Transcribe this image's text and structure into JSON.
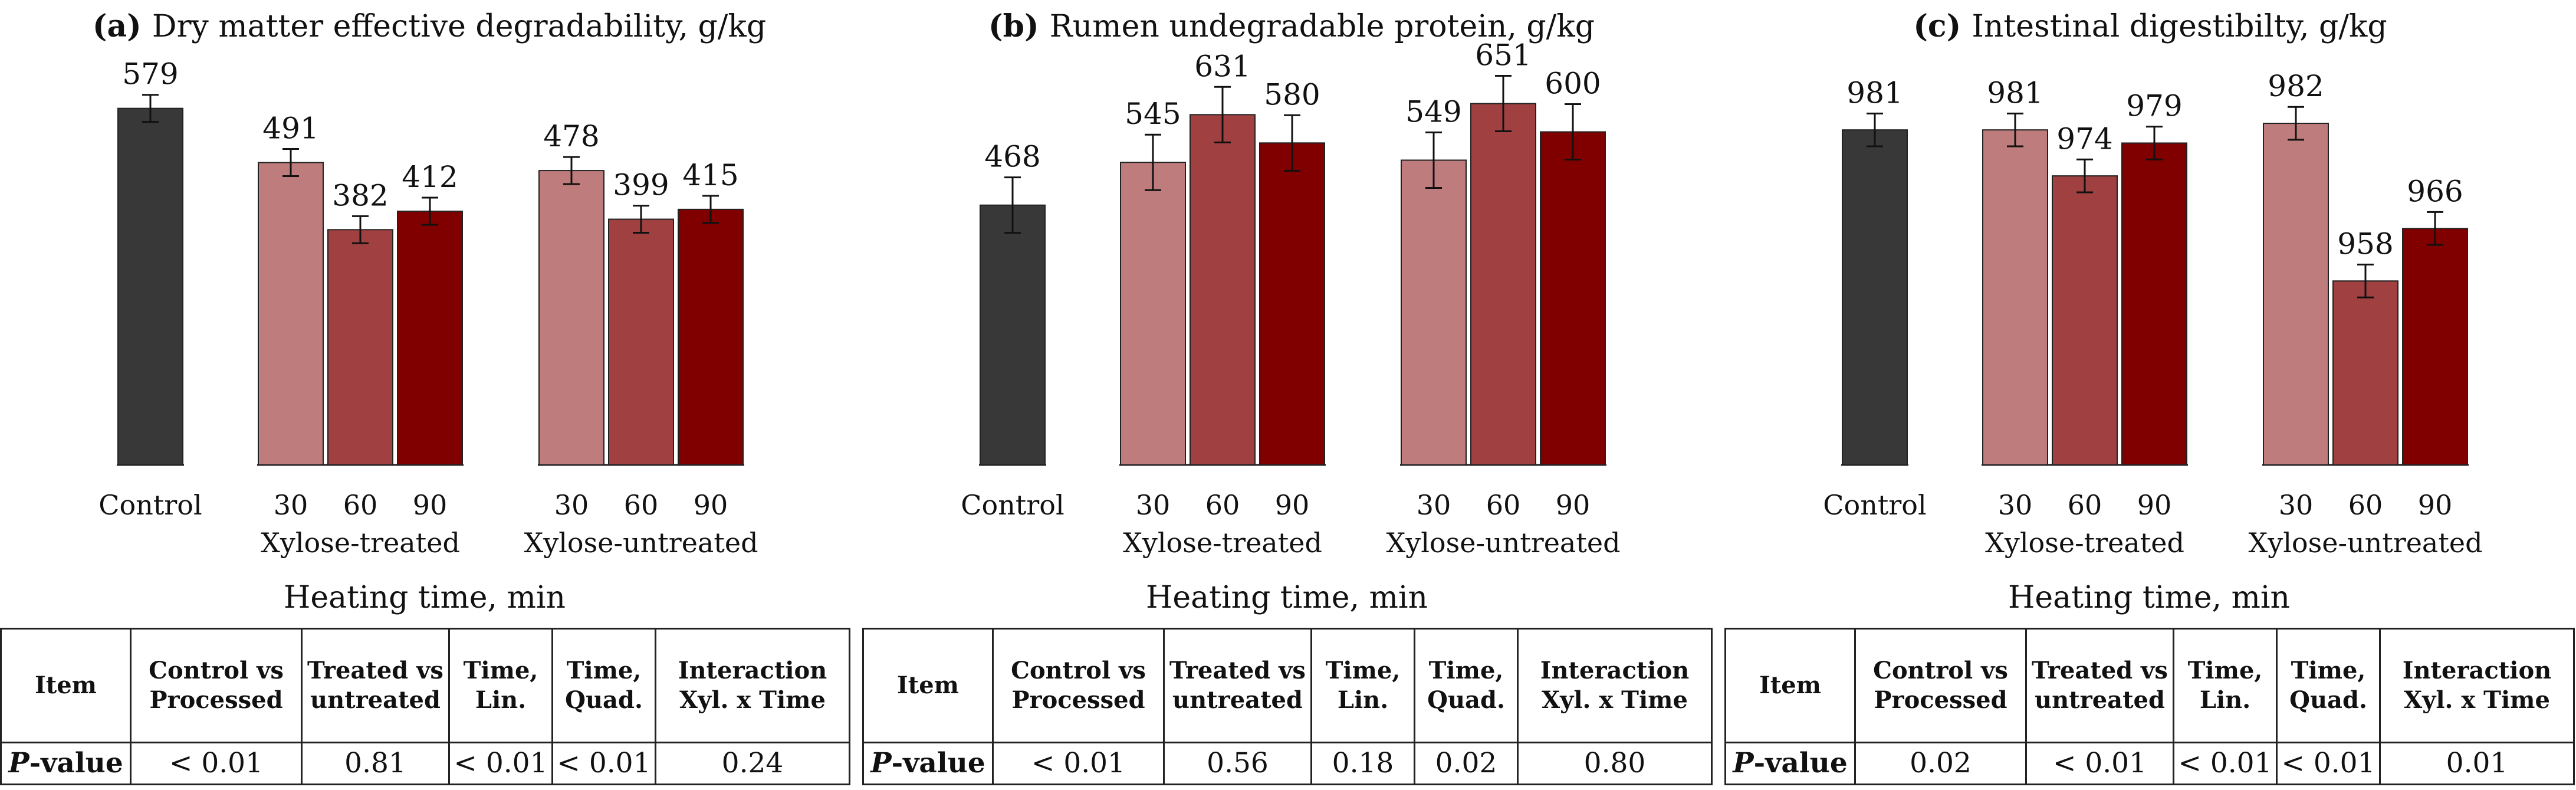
{
  "colors": {
    "control": "#383838",
    "t30": "#bf7c7c",
    "t60": "#a04040",
    "t90": "#800000",
    "axis": "#222222"
  },
  "table_headers": [
    "Item",
    "Control vs Processed",
    "Treated vs untreated",
    "Time, Lin.",
    "Time, Quad.",
    "Interaction Xyl. x Time"
  ],
  "p_label": "P",
  "p_suffix": "-value",
  "chart_data": [
    {
      "type": "bar",
      "panel_letter": "(a)",
      "title": "Dry matter effective degradability, g/kg",
      "xlabel": "Heating time, min",
      "group_labels": [
        "",
        "Xylose-treated",
        "Xylose-untreated"
      ],
      "ylim": [
        0,
        640
      ],
      "bars": [
        {
          "group": 0,
          "tick": "Control",
          "value": 579,
          "err": 22,
          "label": "579",
          "color": "control"
        },
        {
          "group": 1,
          "tick": "30",
          "value": 491,
          "err": 22,
          "label": "491",
          "color": "t30"
        },
        {
          "group": 1,
          "tick": "60",
          "value": 382,
          "err": 22,
          "label": "382",
          "color": "t60"
        },
        {
          "group": 1,
          "tick": "90",
          "value": 412,
          "err": 22,
          "label": "412",
          "color": "t90"
        },
        {
          "group": 2,
          "tick": "30",
          "value": 478,
          "err": 22,
          "label": "478",
          "color": "t30"
        },
        {
          "group": 2,
          "tick": "60",
          "value": 399,
          "err": 22,
          "label": "399",
          "color": "t60"
        },
        {
          "group": 2,
          "tick": "90",
          "value": 415,
          "err": 22,
          "label": "415",
          "color": "t90"
        }
      ],
      "p_values": [
        "< 0.01",
        "0.81",
        "< 0.01",
        "< 0.01",
        "0.24"
      ]
    },
    {
      "type": "bar",
      "panel_letter": "(b)",
      "title": "Rumen undegradable protein, g/kg",
      "xlabel": "Heating time, min",
      "group_labels": [
        "",
        "Xylose-treated",
        "Xylose-untreated"
      ],
      "ylim": [
        0,
        710
      ],
      "bars": [
        {
          "group": 0,
          "tick": "Control",
          "value": 468,
          "err": 50,
          "label": "468",
          "color": "control"
        },
        {
          "group": 1,
          "tick": "30",
          "value": 545,
          "err": 50,
          "label": "545",
          "color": "t30"
        },
        {
          "group": 1,
          "tick": "60",
          "value": 631,
          "err": 50,
          "label": "631",
          "color": "t60"
        },
        {
          "group": 1,
          "tick": "90",
          "value": 580,
          "err": 50,
          "label": "580",
          "color": "t90"
        },
        {
          "group": 2,
          "tick": "30",
          "value": 549,
          "err": 50,
          "label": "549",
          "color": "t30"
        },
        {
          "group": 2,
          "tick": "60",
          "value": 651,
          "err": 50,
          "label": "651",
          "color": "t60"
        },
        {
          "group": 2,
          "tick": "90",
          "value": 600,
          "err": 50,
          "label": "600",
          "color": "t90"
        }
      ],
      "p_values": [
        "< 0.01",
        "0.56",
        "0.18",
        "0.02",
        "0.80"
      ]
    },
    {
      "type": "bar",
      "panel_letter": "(c)",
      "title": "Intestinal digestibilty, g/kg",
      "xlabel": "Heating time, min",
      "group_labels": [
        "",
        "Xylose-treated",
        "Xylose-untreated"
      ],
      "ylim": [
        930,
        990
      ],
      "bars": [
        {
          "group": 0,
          "tick": "Control",
          "value": 981,
          "err": 2.5,
          "label": "981",
          "color": "control"
        },
        {
          "group": 1,
          "tick": "30",
          "value": 981,
          "err": 2.5,
          "label": "981",
          "color": "t30"
        },
        {
          "group": 1,
          "tick": "60",
          "value": 974,
          "err": 2.5,
          "label": "974",
          "color": "t60"
        },
        {
          "group": 1,
          "tick": "90",
          "value": 979,
          "err": 2.5,
          "label": "979",
          "color": "t90"
        },
        {
          "group": 2,
          "tick": "30",
          "value": 982,
          "err": 2.5,
          "label": "982",
          "color": "t30"
        },
        {
          "group": 2,
          "tick": "60",
          "value": 958,
          "err": 2.5,
          "label": "958",
          "color": "t60"
        },
        {
          "group": 2,
          "tick": "90",
          "value": 966,
          "err": 2.5,
          "label": "966",
          "color": "t90"
        }
      ],
      "p_values": [
        "0.02",
        "< 0.01",
        "< 0.01",
        "< 0.01",
        "0.01"
      ]
    }
  ]
}
